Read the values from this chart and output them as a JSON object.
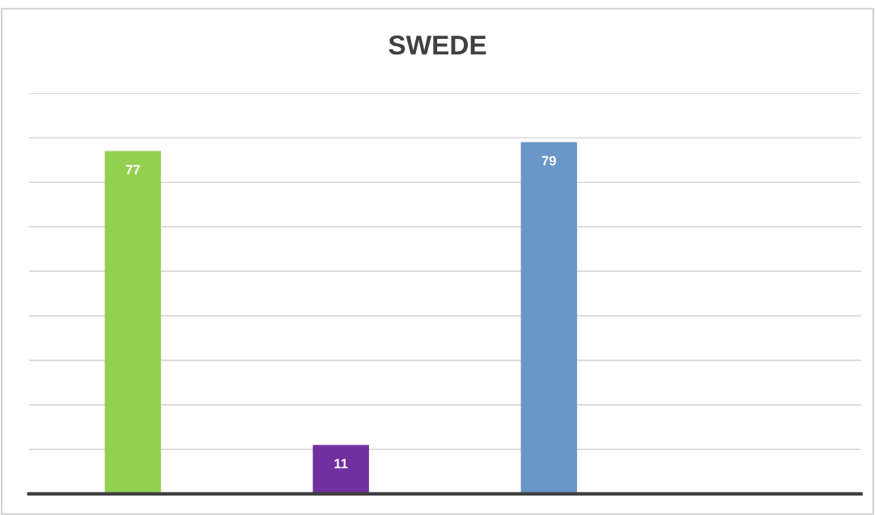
{
  "chart_data": {
    "type": "bar",
    "title": "SWEDE",
    "categories": [
      null,
      null,
      null
    ],
    "values": [
      77,
      11,
      79
    ],
    "colors": [
      "#92d050",
      "#7030a0",
      "#6a96c8"
    ],
    "ylim": [
      0,
      90
    ],
    "yticks": [
      {
        "value": 0,
        "label": null
      },
      {
        "value": 10,
        "label": null
      },
      {
        "value": 20,
        "label": null
      },
      {
        "value": 30,
        "label": null
      },
      {
        "value": 40,
        "label": null
      },
      {
        "value": 50,
        "label": null
      },
      {
        "value": 60,
        "label": null
      },
      {
        "value": 70,
        "label": null
      },
      {
        "value": 80,
        "label": null
      },
      {
        "value": 90,
        "label": null
      }
    ],
    "grid": "y",
    "data_labels": true
  }
}
